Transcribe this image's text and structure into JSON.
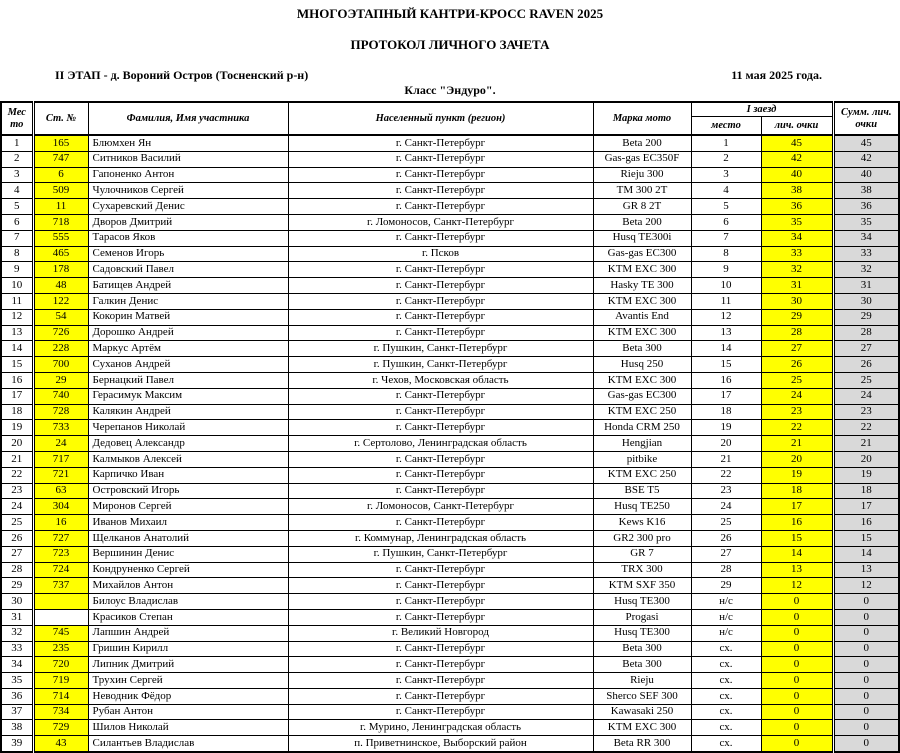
{
  "page": {
    "title1": "МНОГОЭТАПНЫЙ КАНТРИ-КРОСС RAVEN 2025",
    "title2": "ПРОТОКОЛ ЛИЧНОГО ЗАЧЕТА",
    "stage": "II ЭТАП - д. Вороний Остров (Тосненский р-н)",
    "date": "11 мая 2025 года.",
    "klass": "Класс \"Эндуро\"."
  },
  "colors": {
    "highlight": "#FFFF00",
    "total_bg": "#D9D9D9"
  },
  "table": {
    "headers": {
      "place": "Место",
      "num": "Ст. №",
      "name": "Фамилия, Имя участника",
      "city": "Населенный пункт (регион)",
      "moto": "Марка мото",
      "heat": "I заезд",
      "heat_place": "место",
      "heat_points": "лич. очки",
      "total": "Сумм. лич. очки"
    },
    "rows": [
      {
        "place": 1,
        "num": 165,
        "name": "Блюмхен Ян",
        "city": "г. Санкт-Петербург",
        "moto": "Beta 200",
        "heat_place": "1",
        "heat_points": 45,
        "total": 45
      },
      {
        "place": 2,
        "num": 747,
        "name": "Ситников Василий",
        "city": "г. Санкт-Петербург",
        "moto": "Gas-gas EC350F",
        "heat_place": "2",
        "heat_points": 42,
        "total": 42
      },
      {
        "place": 3,
        "num": 6,
        "name": "Гапоненко Антон",
        "city": "г. Санкт-Петербург",
        "moto": "Rieju 300",
        "heat_place": "3",
        "heat_points": 40,
        "total": 40
      },
      {
        "place": 4,
        "num": 509,
        "name": "Чулочников Сергей",
        "city": "г. Санкт-Петербург",
        "moto": "TM 300 2T",
        "heat_place": "4",
        "heat_points": 38,
        "total": 38
      },
      {
        "place": 5,
        "num": 11,
        "name": "Сухаревский Денис",
        "city": "г. Санкт-Петербург",
        "moto": "GR 8 2T",
        "heat_place": "5",
        "heat_points": 36,
        "total": 36
      },
      {
        "place": 6,
        "num": 718,
        "name": "Дворов Дмитрий",
        "city": "г. Ломоносов, Санкт-Петербург",
        "moto": "Beta 200",
        "heat_place": "6",
        "heat_points": 35,
        "total": 35
      },
      {
        "place": 7,
        "num": 555,
        "name": "Тарасов Яков",
        "city": "г. Санкт-Петербург",
        "moto": "Husq TE300i",
        "heat_place": "7",
        "heat_points": 34,
        "total": 34
      },
      {
        "place": 8,
        "num": 465,
        "name": "Семенов Игорь",
        "city": "г. Псков",
        "moto": "Gas-gas EC300",
        "heat_place": "8",
        "heat_points": 33,
        "total": 33
      },
      {
        "place": 9,
        "num": 178,
        "name": "Садовский Павел",
        "city": "г. Санкт-Петербург",
        "moto": "KTM EXC 300",
        "heat_place": "9",
        "heat_points": 32,
        "total": 32
      },
      {
        "place": 10,
        "num": 48,
        "name": "Батищев Андрей",
        "city": "г. Санкт-Петербург",
        "moto": "Hasky TE 300",
        "heat_place": "10",
        "heat_points": 31,
        "total": 31
      },
      {
        "place": 11,
        "num": 122,
        "name": "Галкин Денис",
        "city": "г. Санкт-Петербург",
        "moto": "KTM EXC 300",
        "heat_place": "11",
        "heat_points": 30,
        "total": 30
      },
      {
        "place": 12,
        "num": 54,
        "name": "Кокорин Матвей",
        "city": "г. Санкт-Петербург",
        "moto": "Avantis End",
        "heat_place": "12",
        "heat_points": 29,
        "total": 29
      },
      {
        "place": 13,
        "num": 726,
        "name": "Дорошко Андрей",
        "city": "г. Санкт-Петербург",
        "moto": "KTM EXC 300",
        "heat_place": "13",
        "heat_points": 28,
        "total": 28
      },
      {
        "place": 14,
        "num": 228,
        "name": "Маркус Артём",
        "city": "г. Пушкин, Санкт-Петербург",
        "moto": "Beta 300",
        "heat_place": "14",
        "heat_points": 27,
        "total": 27
      },
      {
        "place": 15,
        "num": 700,
        "name": "Суханов Андрей",
        "city": "г. Пушкин, Санкт-Петербург",
        "moto": "Husq 250",
        "heat_place": "15",
        "heat_points": 26,
        "total": 26
      },
      {
        "place": 16,
        "num": 29,
        "name": "Бернацкий Павел",
        "city": "г. Чехов, Московская область",
        "moto": "KTM EXC 300",
        "heat_place": "16",
        "heat_points": 25,
        "total": 25
      },
      {
        "place": 17,
        "num": 740,
        "name": "Герасимук Максим",
        "city": "г. Санкт-Петербург",
        "moto": "Gas-gas EC300",
        "heat_place": "17",
        "heat_points": 24,
        "total": 24
      },
      {
        "place": 18,
        "num": 728,
        "name": "Калякин Андрей",
        "city": "г. Санкт-Петербург",
        "moto": "KTM EXC 250",
        "heat_place": "18",
        "heat_points": 23,
        "total": 23
      },
      {
        "place": 19,
        "num": 733,
        "name": "Черепанов Николай",
        "city": "г. Санкт-Петербург",
        "moto": "Honda CRM 250",
        "heat_place": "19",
        "heat_points": 22,
        "total": 22
      },
      {
        "place": 20,
        "num": 24,
        "name": "Дедовец Александр",
        "city": "г. Сертолово, Ленинградская область",
        "moto": "Hengjian",
        "heat_place": "20",
        "heat_points": 21,
        "total": 21
      },
      {
        "place": 21,
        "num": 717,
        "name": "Калмыков Алексей",
        "city": "г. Санкт-Петербург",
        "moto": "pitbike",
        "heat_place": "21",
        "heat_points": 20,
        "total": 20
      },
      {
        "place": 22,
        "num": 721,
        "name": "Карпичко Иван",
        "city": "г. Санкт-Петербург",
        "moto": "KTM EXC 250",
        "heat_place": "22",
        "heat_points": 19,
        "total": 19
      },
      {
        "place": 23,
        "num": 63,
        "name": "Островский Игорь",
        "city": "г. Санкт-Петербург",
        "moto": "BSE T5",
        "heat_place": "23",
        "heat_points": 18,
        "total": 18
      },
      {
        "place": 24,
        "num": 304,
        "name": "Миронов Сергей",
        "city": "г. Ломоносов, Санкт-Петербург",
        "moto": "Husq TE250",
        "heat_place": "24",
        "heat_points": 17,
        "total": 17
      },
      {
        "place": 25,
        "num": 16,
        "name": "Иванов Михаил",
        "city": "г. Санкт-Петербург",
        "moto": "Kews K16",
        "heat_place": "25",
        "heat_points": 16,
        "total": 16
      },
      {
        "place": 26,
        "num": 727,
        "name": "Щелканов Анатолий",
        "city": "г. Коммунар, Ленинградская область",
        "moto": "GR2 300 pro",
        "heat_place": "26",
        "heat_points": 15,
        "total": 15
      },
      {
        "place": 27,
        "num": 723,
        "name": "Вершинин Денис",
        "city": "г. Пушкин, Санкт-Петербург",
        "moto": "GR 7",
        "heat_place": "27",
        "heat_points": 14,
        "total": 14
      },
      {
        "place": 28,
        "num": 724,
        "name": "Кондруненко Сергей",
        "city": "г. Санкт-Петербург",
        "moto": "TRX 300",
        "heat_place": "28",
        "heat_points": 13,
        "total": 13
      },
      {
        "place": 29,
        "num": 737,
        "name": "Михайлов Антон",
        "city": "г. Санкт-Петербург",
        "moto": "KTM SXF 350",
        "heat_place": "29",
        "heat_points": 12,
        "total": 12
      },
      {
        "place": 30,
        "num": "",
        "name": "Билоус Владислав",
        "city": "г. Санкт-Петербург",
        "moto": "Husq TE300",
        "heat_place": "н/с",
        "heat_points": 0,
        "total": 0
      },
      {
        "place": 31,
        "num": "",
        "num_bg": "#FFFFFF",
        "name": "Красиков Степан",
        "city": "г. Санкт-Петербург",
        "moto": "Progasi",
        "heat_place": "н/с",
        "heat_points": 0,
        "total": 0
      },
      {
        "place": 32,
        "num": 745,
        "name": "Лапшин Андрей",
        "city": "г. Великий Новгород",
        "moto": "Husq TE300",
        "heat_place": "н/с",
        "heat_points": 0,
        "total": 0
      },
      {
        "place": 33,
        "num": 235,
        "name": "Гришин Кирилл",
        "city": "г. Санкт-Петербург",
        "moto": "Beta 300",
        "heat_place": "сх.",
        "heat_points": 0,
        "total": 0
      },
      {
        "place": 34,
        "num": 720,
        "name": "Липник Дмитрий",
        "city": "г. Санкт-Петербург",
        "moto": "Beta 300",
        "heat_place": "сх.",
        "heat_points": 0,
        "total": 0
      },
      {
        "place": 35,
        "num": 719,
        "name": "Трухин Сергей",
        "city": "г. Санкт-Петербург",
        "moto": "Rieju",
        "heat_place": "сх.",
        "heat_points": 0,
        "total": 0
      },
      {
        "place": 36,
        "num": 714,
        "name": "Неводник Фёдор",
        "city": "г. Санкт-Петербург",
        "moto": "Sherco SEF 300",
        "heat_place": "сх.",
        "heat_points": 0,
        "total": 0
      },
      {
        "place": 37,
        "num": 734,
        "name": "Рубан Антон",
        "city": "г. Санкт-Петербург",
        "moto": "Kawasaki 250",
        "heat_place": "сх.",
        "heat_points": 0,
        "total": 0
      },
      {
        "place": 38,
        "num": 729,
        "name": "Шилов Николай",
        "city": "г. Мурино, Ленинградская область",
        "moto": "KTM EXC 300",
        "heat_place": "сх.",
        "heat_points": 0,
        "total": 0
      },
      {
        "place": 39,
        "num": 43,
        "name": "Силантьев Владислав",
        "city": "п. Приветнинское, Выборский район",
        "moto": "Beta RR 300",
        "heat_place": "сх.",
        "heat_points": 0,
        "total": 0
      }
    ]
  }
}
